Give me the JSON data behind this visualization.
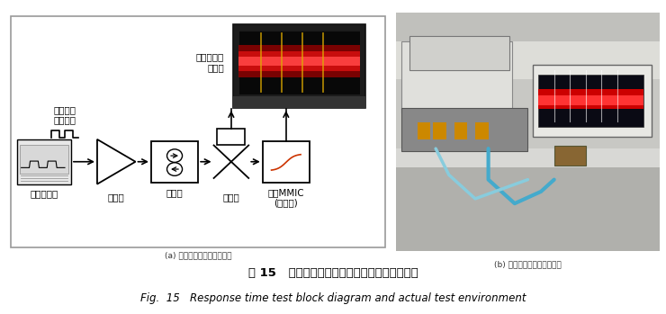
{
  "fig_title_cn": "图 15   响应时间测试组网示意图及实际测试环境",
  "fig_title_en": "Fig.  15   Response time test block diagram and actual test environment",
  "caption_a": "(a) 响应时间测试组网示意图",
  "caption_b": "(b) 响应时间实验室测试环境",
  "label_oscilloscope": "快高速采样\n示波器",
  "label_pulse": "快上升沿\n脉冲信号",
  "label_siggen": "信号发生器",
  "label_amp": "放大器",
  "label_iso": "隔离器",
  "label_coupler": "耦合器",
  "label_limiter": "限幅MMIC\n(待测件)",
  "bg_color": "#ffffff",
  "diagram_bg": "#ffffff",
  "border_color": "#000000",
  "label_fontsize": 7.5,
  "small_fontsize": 7
}
